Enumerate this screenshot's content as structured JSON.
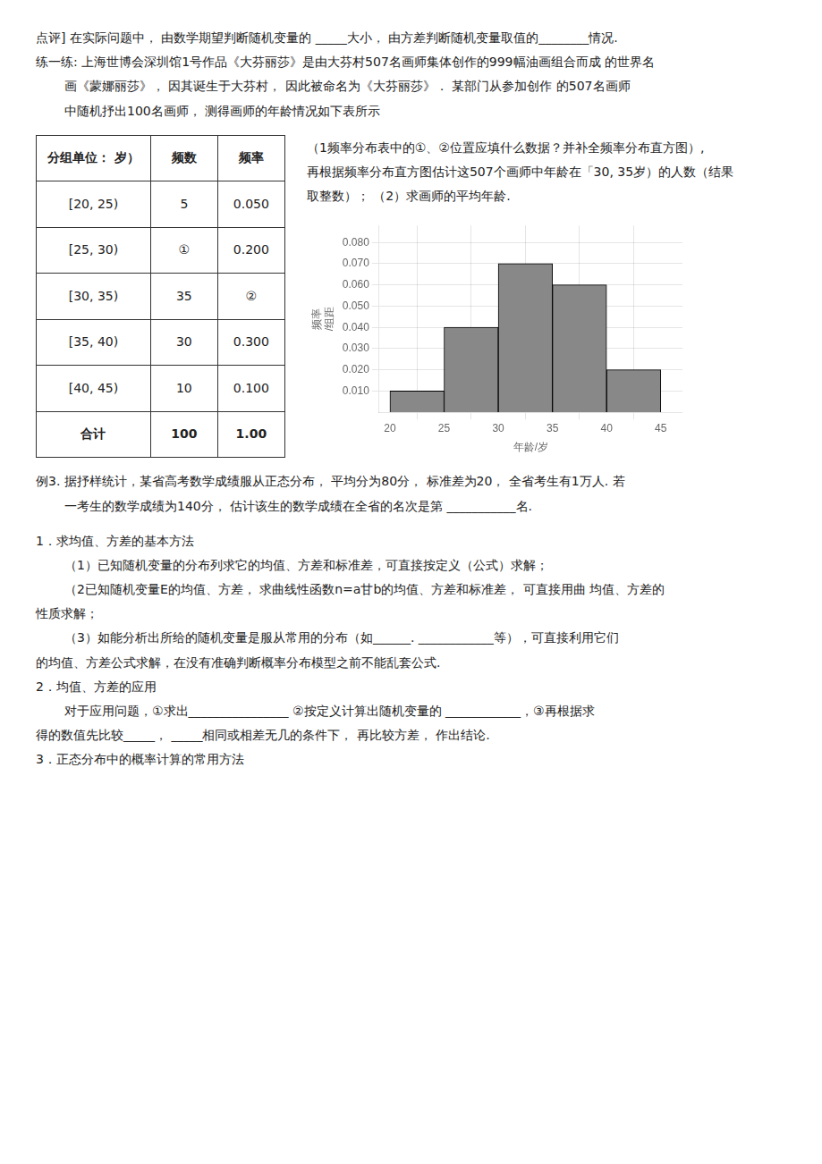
{
  "chart_data": {
    "type": "histogram",
    "bins": [
      20,
      25,
      30,
      35,
      40,
      45
    ],
    "values": [
      0.01,
      0.04,
      0.07,
      0.06,
      0.02
    ],
    "color": "#888888",
    "xlabel": "年龄/岁",
    "ylabel": "频率\n/组距",
    "xlim": [
      19,
      47
    ],
    "xticks": [
      20,
      25,
      30,
      35,
      40,
      45
    ],
    "ylim": [
      0,
      0.088
    ],
    "yticks": [
      {
        "value": 0.01,
        "label": "0.010"
      },
      {
        "value": 0.02,
        "label": "0.020"
      },
      {
        "value": 0.03,
        "label": "0.030"
      },
      {
        "value": 0.04,
        "label": "0.040"
      },
      {
        "value": 0.05,
        "label": "0.050"
      },
      {
        "value": 0.06,
        "label": "0.060"
      },
      {
        "value": 0.07,
        "label": "0.070"
      },
      {
        "value": 0.08,
        "label": "0.080"
      }
    ],
    "grid": true,
    "annotations": [
      "点评] 在实际问题中， 由数学期望判断随机变量的 _____大小， 由方差判断随机变量取值的________情况.",
      "练一练: 上海世博会深圳馆1号作品《大芬丽莎》是由大芬村507名画师集体创作的999幅油画组合而成  的世界名",
      "画《蒙娜丽莎》， 因其诞生于大芬村， 因此被命名为《大芬丽莎》． 某部门从参加创作  的507名画师",
      "中随机抒出100名画师， 测得画师的年龄情况如下表所示",
      "（1频率分布表中的①、②位置应填什么数据？并补全频率分布直方图）,",
      "再根据频率分布直方图估计这507个画师中年龄在「30, 35岁）的人数（结果",
      "取整数）；  （2）求画师的平均年龄.",
      "例3. 据抒样统计，某省高考数学成绩服从正态分布， 平均分为80分， 标准差为20， 全省考生有1万人. 若",
      "一考生的数学成绩为140分， 估计该生的数学成绩在全省的名次是第 ___________名.",
      "1．求均值、方差的基本方法",
      "（1）已知随机变量的分布列求它的均值、方差和标准差，可直接按定义（公式）求解；",
      "（2已知随机变量E的均值、方差， 求曲线性函数n=a甘b的均值、方差和标准差， 可直接用曲  均值、方差的",
      "性质求解；",
      "（3）如能分析出所给的随机变量是服从常用的分布（如______. ____________等），可直接利用它们",
      "的均值、方差公式求解，在没有准确判断概率分布模型之前不能乱套公式.",
      "2．均值、方差的应用",
      "对于应用问题，①求出________________  ②按定义计算出随机变量的  ____________，③再根据求",
      "得的数值先比较_____，  _____相同或相差无几的条件下， 再比较方差， 作出结论.",
      "3．正态分布中的概率计算的常用方法"
    ]
  },
  "table": {
    "headers": [
      "分组单位： 岁）",
      "频数",
      "频率"
    ],
    "rows": [
      [
        "[20, 25)",
        "5",
        "0.050"
      ],
      [
        "[25, 30)",
        "①",
        "0.200"
      ],
      [
        "[30, 35)",
        "35",
        "②"
      ],
      [
        "[35, 40)",
        "30",
        "0.300"
      ],
      [
        "[40, 45)",
        "10",
        "0.100"
      ],
      [
        "合计",
        "100",
        "1.00"
      ]
    ]
  }
}
